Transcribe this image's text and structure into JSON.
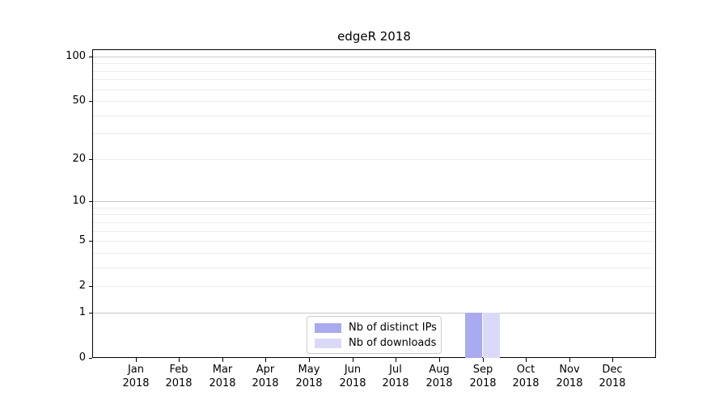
{
  "chart_data": {
    "type": "bar",
    "title": "edgeR 2018",
    "xlabel": "",
    "ylabel": "",
    "categories": [
      "Jan 2018",
      "Feb 2018",
      "Mar 2018",
      "Apr 2018",
      "May 2018",
      "Jun 2018",
      "Jul 2018",
      "Aug 2018",
      "Sep 2018",
      "Oct 2018",
      "Nov 2018",
      "Dec 2018"
    ],
    "series": [
      {
        "name": "Nb of distinct IPs",
        "color": "#aaaaf0",
        "values": [
          0,
          0,
          0,
          0,
          0,
          0,
          0,
          0,
          1,
          0,
          0,
          0
        ]
      },
      {
        "name": "Nb of downloads",
        "color": "#dadaf8",
        "values": [
          0,
          0,
          0,
          0,
          0,
          0,
          0,
          0,
          1,
          0,
          0,
          0
        ]
      }
    ],
    "yscale": "log1p",
    "ylim": [
      0,
      100
    ],
    "yticks": [
      0,
      1,
      2,
      5,
      10,
      20,
      50,
      100
    ],
    "gridlines": {
      "major": [
        1,
        10,
        100
      ],
      "minor": [
        2,
        3,
        4,
        5,
        6,
        7,
        8,
        9,
        20,
        30,
        40,
        50,
        60,
        70,
        80,
        90
      ]
    },
    "bar_width_fraction": 0.4,
    "legend": {
      "position": "lower center"
    },
    "colors": {
      "major_grid": "#c8c8c8",
      "minor_grid": "#ececec",
      "spine": "#000000"
    }
  }
}
